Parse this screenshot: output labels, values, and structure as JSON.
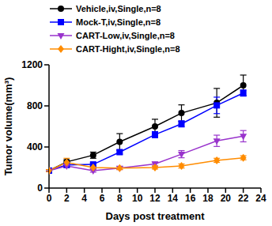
{
  "chart_data": {
    "type": "line",
    "x_label": "Days post treatment",
    "y_label": "Tumor volume(mm³)",
    "x": [
      0,
      2,
      5,
      8,
      12,
      15,
      19,
      22
    ],
    "xlim": [
      0,
      24
    ],
    "xticks": [
      0,
      2,
      4,
      6,
      8,
      10,
      12,
      14,
      16,
      18,
      20,
      22,
      24
    ],
    "ylim": [
      0,
      1200
    ],
    "yticks": [
      0,
      400,
      800,
      1200
    ],
    "grid": false,
    "legend": "upper left",
    "series": [
      {
        "name": "Vehicle,iv,Single,n=8",
        "color": "#000000",
        "marker": "circle",
        "values": [
          170,
          255,
          320,
          450,
          600,
          730,
          830,
          1000
        ],
        "errors": [
          10,
          20,
          30,
          80,
          70,
          80,
          140,
          100
        ]
      },
      {
        "name": "Mock-T,iv,Single,n=8",
        "color": "#0000ff",
        "marker": "square",
        "values": [
          170,
          225,
          230,
          350,
          520,
          625,
          805,
          925
        ],
        "errors": [
          10,
          15,
          15,
          20,
          30,
          30,
          80,
          30
        ]
      },
      {
        "name": "CART-Low,iv,Single,n=8",
        "color": "#9933cc",
        "marker": "triangle-down",
        "values": [
          170,
          215,
          170,
          195,
          235,
          330,
          460,
          505
        ],
        "errors": [
          10,
          15,
          15,
          15,
          20,
          35,
          55,
          55
        ]
      },
      {
        "name": "CART-Hight,iv,Single,n=8",
        "color": "#ff8c00",
        "marker": "diamond",
        "values": [
          170,
          250,
          200,
          195,
          200,
          215,
          270,
          295
        ],
        "errors": [
          10,
          40,
          20,
          15,
          15,
          20,
          20,
          20
        ]
      }
    ]
  }
}
